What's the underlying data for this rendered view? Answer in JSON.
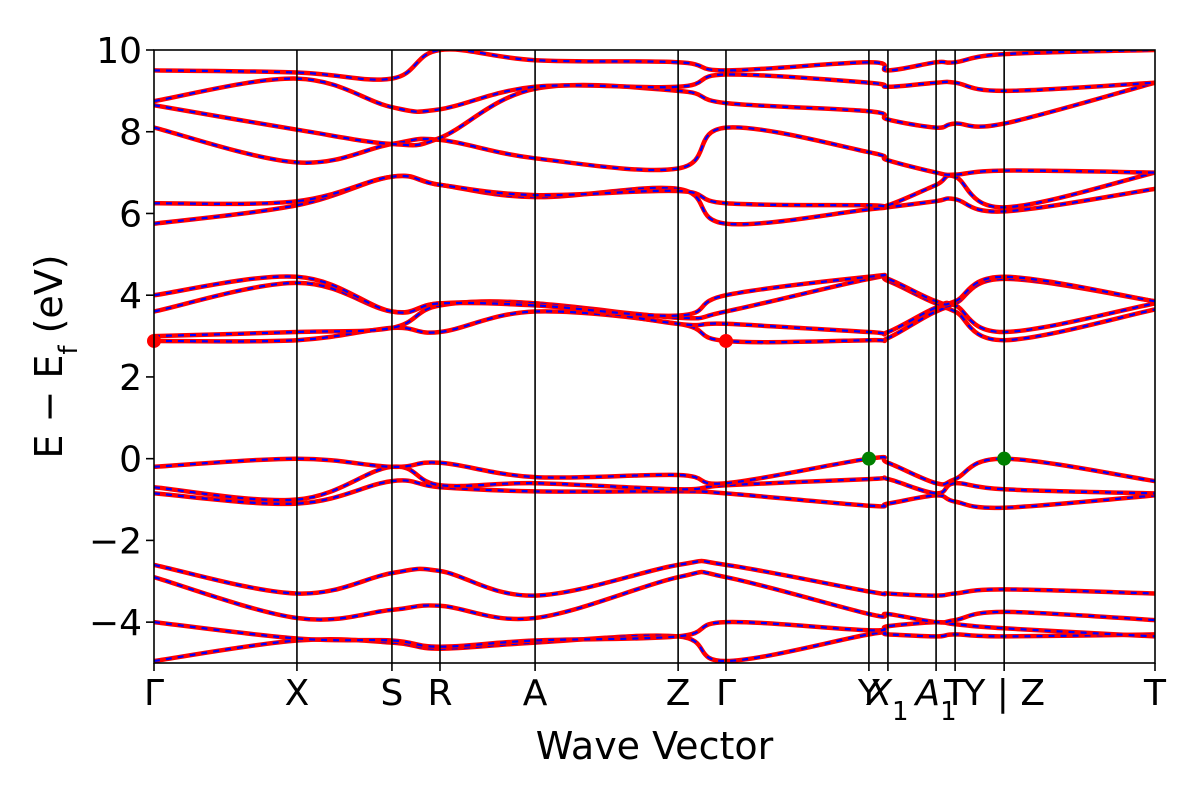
{
  "chart_data": {
    "type": "line",
    "title": "",
    "xlabel": "Wave Vector",
    "ylabel": {
      "base": "E − E",
      "sub": "f",
      "unit": " (eV)"
    },
    "ylim": [
      -5,
      10
    ],
    "y_ticks": [
      -4,
      -2,
      0,
      2,
      4,
      6,
      8,
      10
    ],
    "y_tick_labels": [
      "−4",
      "−2",
      "0",
      "2",
      "4",
      "6",
      "8",
      "10"
    ],
    "grid": false,
    "legend": "none",
    "x_ticks": [
      0,
      0.1428,
      0.2377,
      0.2857,
      0.3807,
      0.5236,
      0.5714,
      0.7142,
      0.7332,
      0.7813,
      0.8003,
      0.8493,
      1.0
    ],
    "x_tick_labels": [
      "Γ",
      "X",
      "S",
      "R",
      "A",
      "Z",
      "Γ",
      "Y",
      "X1",
      "A1",
      "T",
      "Y | Z",
      "T"
    ],
    "x_tick_label_parts": [
      {
        "base": "Γ",
        "sub": ""
      },
      {
        "base": "X",
        "sub": ""
      },
      {
        "base": "S",
        "sub": ""
      },
      {
        "base": "R",
        "sub": ""
      },
      {
        "base": "A",
        "sub": ""
      },
      {
        "base": "Z",
        "sub": ""
      },
      {
        "base": "Γ",
        "sub": ""
      },
      {
        "base": "Y",
        "sub": ""
      },
      {
        "base": "X",
        "sub": "1"
      },
      {
        "base": "A",
        "sub": "1"
      },
      {
        "base": "T",
        "sub": ""
      },
      {
        "base": "Y | Z",
        "sub": ""
      },
      {
        "base": "T",
        "sub": ""
      }
    ],
    "colors": {
      "spin_up": "#ff0000",
      "spin_down": "#0000ff",
      "cbm_marker": "#ff0000",
      "vbm_marker": "#008000",
      "k_lines": "#000000"
    },
    "special_points": [
      {
        "kind": "CBM",
        "x": 0.0,
        "y": 2.88,
        "color": "#ff0000"
      },
      {
        "kind": "CBM",
        "x": 0.5714,
        "y": 2.88,
        "color": "#ff0000"
      },
      {
        "kind": "VBM",
        "x": 0.7142,
        "y": 0.0,
        "color": "#008000"
      },
      {
        "kind": "VBM",
        "x": 0.8493,
        "y": 0.0,
        "color": "#008000"
      }
    ],
    "series": [
      {
        "x": [
          0,
          0.1428,
          0.2377,
          0.2857,
          0.3807,
          0.5236,
          0.5714,
          0.7142,
          0.7332,
          0.7813,
          0.8003,
          0.8493,
          1.0
        ],
        "y": [
          -4.95,
          -4.45,
          -4.5,
          -4.65,
          -4.5,
          -4.35,
          -4.95,
          -4.3,
          -4.3,
          -4.35,
          -4.3,
          -4.35,
          -4.3
        ]
      },
      {
        "x": [
          0,
          0.1428,
          0.2377,
          0.2857,
          0.3807,
          0.5236,
          0.5714,
          0.7142,
          0.7332,
          0.7813,
          0.8003,
          0.8493,
          1.0
        ],
        "y": [
          -4.0,
          -4.4,
          -4.45,
          -4.6,
          -4.45,
          -4.35,
          -4.0,
          -4.2,
          -4.1,
          -4.0,
          -4.05,
          -4.15,
          -4.35
        ]
      },
      {
        "x": [
          0,
          0.1428,
          0.2377,
          0.2857,
          0.3807,
          0.5236,
          0.5714,
          0.7142,
          0.7332,
          0.7813,
          0.8003,
          0.8493,
          1.0
        ],
        "y": [
          -2.9,
          -3.9,
          -3.7,
          -3.6,
          -3.9,
          -2.9,
          -2.9,
          -3.8,
          -3.8,
          -4.0,
          -3.95,
          -3.75,
          -3.95
        ]
      },
      {
        "x": [
          0,
          0.1428,
          0.2377,
          0.2857,
          0.3807,
          0.5236,
          0.5714,
          0.7142,
          0.7332,
          0.7813,
          0.8003,
          0.8493,
          1.0
        ],
        "y": [
          -2.6,
          -3.3,
          -2.8,
          -2.75,
          -3.35,
          -2.6,
          -2.6,
          -3.25,
          -3.3,
          -3.35,
          -3.3,
          -3.2,
          -3.3
        ]
      },
      {
        "x": [
          0,
          0.1428,
          0.2377,
          0.2857,
          0.3807,
          0.5236,
          0.5714,
          0.7142,
          0.7332,
          0.7813,
          0.8003,
          0.8493,
          1.0
        ],
        "y": [
          -0.85,
          -1.1,
          -0.55,
          -0.7,
          -0.8,
          -0.8,
          -0.85,
          -1.15,
          -1.1,
          -0.9,
          -1.05,
          -1.2,
          -0.9
        ]
      },
      {
        "x": [
          0,
          0.1428,
          0.2377,
          0.2857,
          0.3807,
          0.5236,
          0.5714,
          0.7142,
          0.7332,
          0.7813,
          0.8003,
          0.8493,
          1.0
        ],
        "y": [
          -0.7,
          -1.0,
          -0.2,
          -0.65,
          -0.6,
          -0.75,
          -0.65,
          -0.5,
          -0.5,
          -0.85,
          -0.6,
          -0.75,
          -0.85
        ]
      },
      {
        "x": [
          0,
          0.1428,
          0.2377,
          0.2857,
          0.3807,
          0.5236,
          0.5714,
          0.7142,
          0.7332,
          0.7813,
          0.8003,
          0.8493,
          1.0
        ],
        "y": [
          -0.2,
          0.0,
          -0.2,
          -0.1,
          -0.45,
          -0.4,
          -0.6,
          0.0,
          -0.1,
          -0.6,
          -0.5,
          0.0,
          -0.55
        ]
      },
      {
        "x": [
          0,
          0.1428,
          0.2377,
          0.2857,
          0.3807,
          0.5236,
          0.5714,
          0.7142,
          0.7332,
          0.7813,
          0.8003,
          0.8493,
          1.0
        ],
        "y": [
          2.88,
          2.9,
          3.2,
          3.1,
          3.6,
          3.3,
          2.88,
          2.9,
          2.95,
          3.6,
          3.6,
          2.9,
          3.65
        ]
      },
      {
        "x": [
          0,
          0.1428,
          0.2377,
          0.2857,
          0.3807,
          0.5236,
          0.5714,
          0.7142,
          0.7332,
          0.7813,
          0.8003,
          0.8493,
          1.0
        ],
        "y": [
          3.0,
          3.1,
          3.2,
          3.75,
          3.8,
          3.3,
          3.3,
          3.1,
          3.1,
          3.7,
          3.75,
          3.1,
          3.8
        ]
      },
      {
        "x": [
          0,
          0.1428,
          0.2377,
          0.2857,
          0.3807,
          0.5236,
          0.5714,
          0.7142,
          0.7332,
          0.7813,
          0.8003,
          0.8493,
          1.0
        ],
        "y": [
          3.6,
          4.3,
          3.6,
          3.8,
          3.8,
          3.45,
          3.6,
          4.4,
          4.35,
          3.8,
          3.8,
          4.4,
          3.85
        ]
      },
      {
        "x": [
          0,
          0.1428,
          0.2377,
          0.2857,
          0.3807,
          0.5236,
          0.5714,
          0.7142,
          0.7332,
          0.7813,
          0.8003,
          0.8493,
          1.0
        ],
        "y": [
          4.0,
          4.45,
          3.6,
          3.8,
          3.75,
          3.5,
          4.0,
          4.45,
          4.4,
          3.85,
          3.85,
          4.45,
          3.85
        ]
      },
      {
        "x": [
          0,
          0.1428,
          0.2377,
          0.2857,
          0.3807,
          0.5236,
          0.5714,
          0.7142,
          0.7332,
          0.7813,
          0.8003,
          0.8493,
          1.0
        ],
        "y": [
          5.75,
          6.2,
          6.9,
          6.7,
          6.4,
          6.6,
          5.75,
          6.1,
          6.15,
          6.3,
          6.35,
          6.05,
          6.6
        ]
      },
      {
        "x": [
          0,
          0.1428,
          0.2377,
          0.2857,
          0.3807,
          0.5236,
          0.5714,
          0.7142,
          0.7332,
          0.7813,
          0.8003,
          0.8493,
          1.0
        ],
        "y": [
          6.25,
          6.3,
          6.9,
          6.7,
          6.45,
          6.55,
          6.25,
          6.2,
          6.2,
          6.7,
          6.9,
          6.15,
          7.0
        ]
      },
      {
        "x": [
          0,
          0.1428,
          0.2377,
          0.2857,
          0.3807,
          0.5236,
          0.5714,
          0.7142,
          0.7332,
          0.7813,
          0.8003,
          0.8493,
          1.0
        ],
        "y": [
          8.1,
          7.25,
          7.7,
          7.8,
          7.35,
          7.1,
          8.1,
          7.5,
          7.3,
          7.0,
          6.95,
          7.05,
          7.0
        ]
      },
      {
        "x": [
          0,
          0.1428,
          0.2377,
          0.2857,
          0.3807,
          0.5236,
          0.5714,
          0.7142,
          0.7332,
          0.7813,
          0.8003,
          0.8493,
          1.0
        ],
        "y": [
          8.65,
          8.05,
          7.7,
          7.85,
          9.05,
          9.0,
          8.7,
          8.5,
          8.3,
          8.1,
          8.2,
          8.2,
          9.2
        ]
      },
      {
        "x": [
          0,
          0.1428,
          0.2377,
          0.2857,
          0.3807,
          0.5236,
          0.5714,
          0.7142,
          0.7332,
          0.7813,
          0.8003,
          0.8493,
          1.0
        ],
        "y": [
          8.75,
          9.3,
          8.6,
          8.55,
          9.1,
          9.1,
          9.4,
          9.2,
          9.1,
          9.2,
          9.2,
          9.0,
          9.2
        ]
      },
      {
        "x": [
          0,
          0.1428,
          0.2377,
          0.2857,
          0.3807,
          0.5236,
          0.5714,
          0.7142,
          0.7332,
          0.7813,
          0.8003,
          0.8493,
          1.0
        ],
        "y": [
          9.5,
          9.45,
          9.3,
          10.0,
          9.75,
          9.7,
          9.5,
          9.7,
          9.5,
          9.7,
          9.7,
          9.9,
          10.0
        ]
      }
    ]
  }
}
